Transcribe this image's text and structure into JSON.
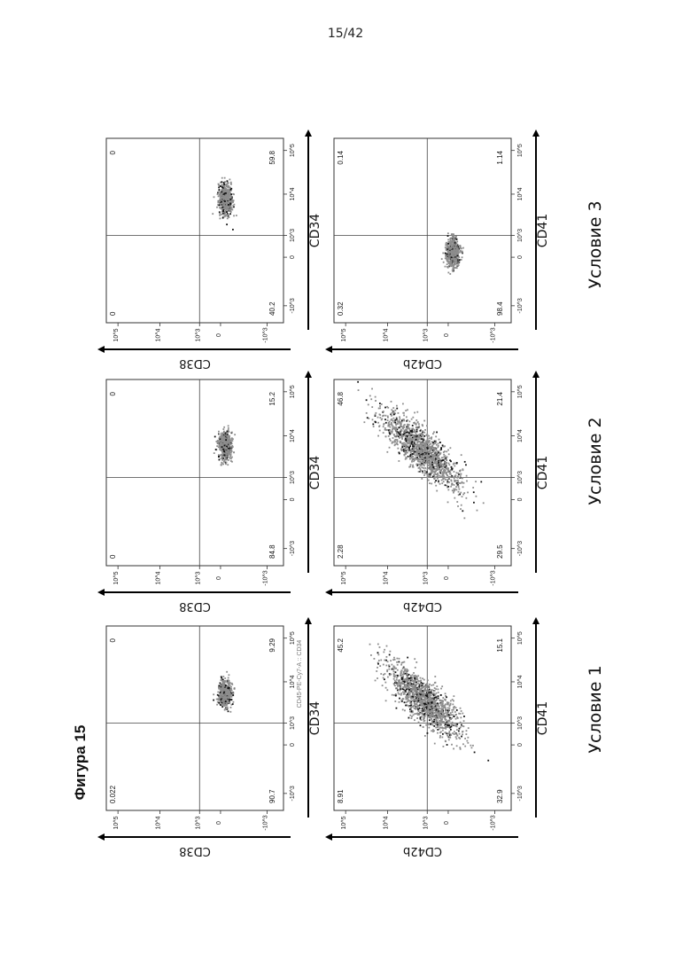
{
  "page_number": "15/42",
  "figure_title": "Фигура 15",
  "conditions": [
    "Условие 1",
    "Условие 2",
    "Условие 3"
  ],
  "stray_label": "CD45-PE-Cy7-A :: CD34",
  "chart_data": [
    {
      "type": "scatter",
      "condition": "Условие 1",
      "xlabel": "CD34",
      "ylabel": "CD38",
      "x_ticks": [
        "-10^3",
        "0",
        "10^3",
        "10^4",
        "10^5"
      ],
      "y_ticks": [
        "10^5",
        "10^4",
        "10^3",
        "0",
        "-10^3"
      ],
      "quadrants": {
        "upper_left": "0.022",
        "upper_right": "0",
        "lower_left": "90.7",
        "lower_right": "9.29"
      },
      "density": {
        "x_center": 1.05,
        "x_spread": 0.25,
        "y_center": -0.1,
        "y_spread": 0.12,
        "shape": "tight"
      }
    },
    {
      "type": "scatter",
      "condition": "Условие 2",
      "xlabel": "CD34",
      "ylabel": "CD38",
      "x_ticks": [
        "-10^3",
        "0",
        "10^3",
        "10^4",
        "10^5"
      ],
      "y_ticks": [
        "10^5",
        "10^4",
        "10^3",
        "0",
        "-10^3"
      ],
      "quadrants": {
        "upper_left": "0",
        "upper_right": "0",
        "lower_left": "84.8",
        "lower_right": "15.2"
      },
      "density": {
        "x_center": 1.1,
        "x_spread": 0.25,
        "y_center": -0.1,
        "y_spread": 0.12,
        "shape": "tight"
      }
    },
    {
      "type": "scatter",
      "condition": "Условие 3",
      "xlabel": "CD34",
      "ylabel": "CD38",
      "x_ticks": [
        "-10^3",
        "0",
        "10^3",
        "10^4",
        "10^5"
      ],
      "y_ticks": [
        "10^5",
        "10^4",
        "10^3",
        "0",
        "-10^3"
      ],
      "quadrants": {
        "upper_left": "0",
        "upper_right": "0",
        "lower_left": "40.2",
        "lower_right": "59.8"
      },
      "density": {
        "x_center": 1.2,
        "x_spread": 0.3,
        "y_center": -0.1,
        "y_spread": 0.12,
        "shape": "tight"
      }
    },
    {
      "type": "scatter",
      "condition": "Условие 1",
      "xlabel": "CD41",
      "ylabel": "CD42b",
      "x_ticks": [
        "-10^3",
        "0",
        "10^3",
        "10^4",
        "10^5"
      ],
      "y_ticks": [
        "10^5",
        "10^4",
        "10^3",
        "0",
        "-10^3"
      ],
      "quadrants": {
        "upper_left": "8.91",
        "upper_right": "45.2",
        "lower_left": "32.9",
        "lower_right": "15.1"
      },
      "density": {
        "x_center": 0.9,
        "x_spread": 0.45,
        "y_center": 0.5,
        "y_spread": 0.5,
        "shape": "diagonal"
      }
    },
    {
      "type": "scatter",
      "condition": "Условие 2",
      "xlabel": "CD41",
      "ylabel": "CD42b",
      "x_ticks": [
        "-10^3",
        "0",
        "10^3",
        "10^4",
        "10^5"
      ],
      "y_ticks": [
        "10^5",
        "10^4",
        "10^3",
        "0",
        "-10^3"
      ],
      "quadrants": {
        "upper_left": "2.28",
        "upper_right": "46.8",
        "lower_left": "29.5",
        "lower_right": "21.4"
      },
      "density": {
        "x_center": 1.0,
        "x_spread": 0.5,
        "y_center": 0.55,
        "y_spread": 0.55,
        "shape": "diagonal"
      }
    },
    {
      "type": "scatter",
      "condition": "Условие 3",
      "xlabel": "CD41",
      "ylabel": "CD42b",
      "x_ticks": [
        "-10^3",
        "0",
        "10^3",
        "10^4",
        "10^5"
      ],
      "y_ticks": [
        "10^5",
        "10^4",
        "10^3",
        "0",
        "-10^3"
      ],
      "quadrants": {
        "upper_left": "0.32",
        "upper_right": "0.14",
        "lower_left": "98.4",
        "lower_right": "1.14"
      },
      "density": {
        "x_center": 0.1,
        "x_spread": 0.25,
        "y_center": -0.1,
        "y_spread": 0.12,
        "shape": "tight"
      }
    }
  ]
}
